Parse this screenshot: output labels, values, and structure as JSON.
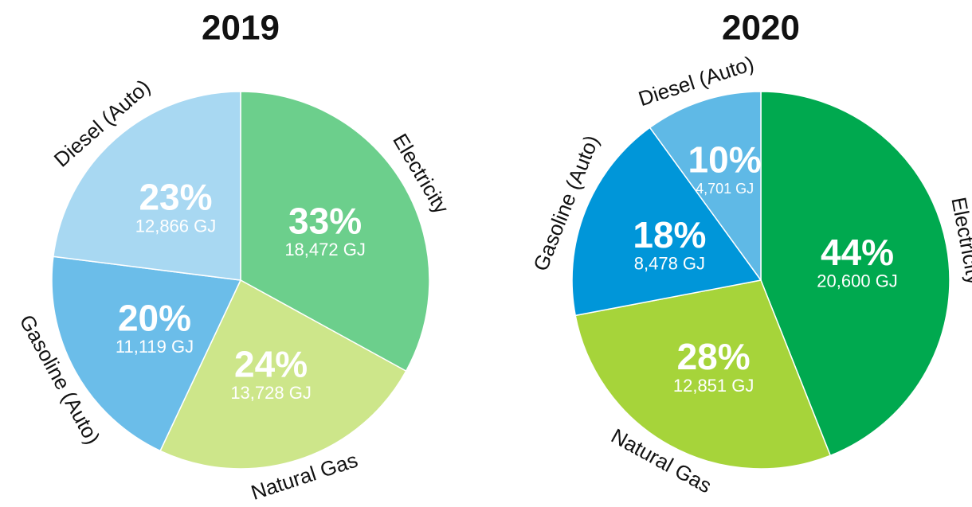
{
  "chart_data": [
    {
      "type": "pie",
      "title": "2019",
      "categories": [
        "Electricity",
        "Natural Gas",
        "Gasoline (Auto)",
        "Diesel (Auto)"
      ],
      "values": [
        33,
        24,
        20,
        23
      ],
      "value_labels": [
        "33%",
        "24%",
        "20%",
        "23%"
      ],
      "energy": [
        18472,
        13728,
        11119,
        12866
      ],
      "energy_labels": [
        "18,472 GJ",
        "13,728 GJ",
        "11,119 GJ",
        "12,866 GJ"
      ],
      "colors": [
        "#6ccf8c",
        "#cde68a",
        "#6bbde9",
        "#a8d8f2"
      ]
    },
    {
      "type": "pie",
      "title": "2020",
      "categories": [
        "Electricity",
        "Natural Gas",
        "Gasoline (Auto)",
        "Diesel (Auto)"
      ],
      "values": [
        44,
        28,
        18,
        10
      ],
      "value_labels": [
        "44%",
        "28%",
        "18%",
        "10%"
      ],
      "energy": [
        20600,
        12851,
        8478,
        4701
      ],
      "energy_labels": [
        "20,600 GJ",
        "12,851 GJ",
        "8,478 GJ",
        "4,701 GJ"
      ],
      "colors": [
        "#00a94f",
        "#a6d43a",
        "#0096d9",
        "#5fb9e6"
      ]
    }
  ]
}
